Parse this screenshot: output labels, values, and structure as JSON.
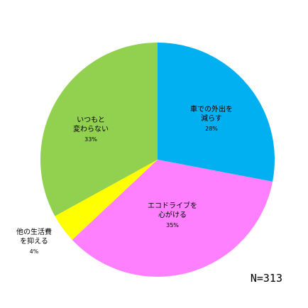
{
  "chart_data": {
    "type": "pie",
    "categories": [
      [
        "車での外出を",
        "減らす"
      ],
      [
        "エコドライブを",
        "心がける"
      ],
      [
        "他の生活費",
        "を抑える"
      ],
      [
        "いつもと",
        "変わらない"
      ]
    ],
    "values": [
      28,
      35,
      4,
      33
    ],
    "value_labels": [
      "28%",
      "35%",
      "4%",
      "33%"
    ],
    "colors": [
      "#00b0f0",
      "#ff80ff",
      "#ffff00",
      "#92d050"
    ],
    "annotation": "N=313"
  }
}
